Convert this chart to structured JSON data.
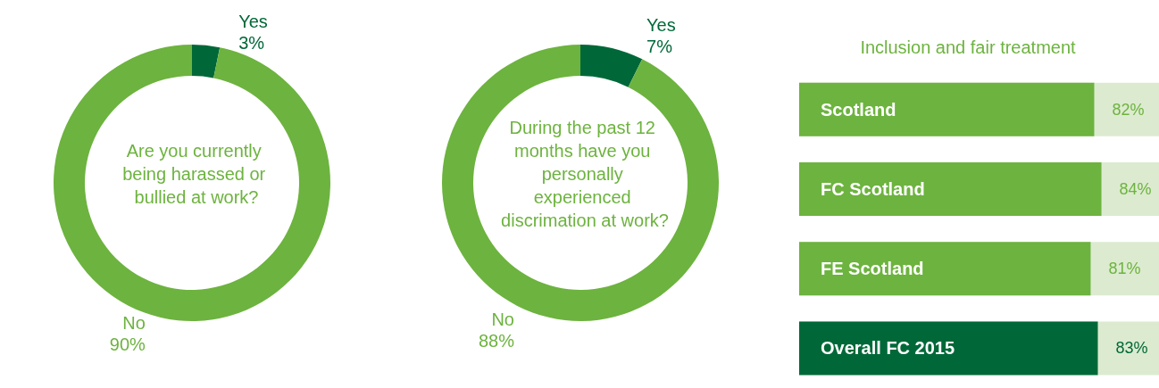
{
  "chart_data": [
    {
      "type": "donut",
      "title": "Are you currently being harassed or bullied at work?",
      "categories": [
        "Yes",
        "No"
      ],
      "values": [
        3,
        90
      ],
      "colors": [
        "#006838",
        "#6db33f"
      ],
      "value_labels": [
        "3%",
        "90%"
      ]
    },
    {
      "type": "donut",
      "title": "During the past 12 months have you personally experienced discrimation at work?",
      "categories": [
        "Yes",
        "No"
      ],
      "values": [
        7,
        88
      ],
      "colors": [
        "#006838",
        "#6db33f"
      ],
      "value_labels": [
        "7%",
        "88%"
      ]
    },
    {
      "type": "bar",
      "orientation": "horizontal",
      "title": "Inclusion and fair treatment",
      "categories": [
        "Scotland",
        "FC Scotland",
        "FE Scotland",
        "Overall FC 2015"
      ],
      "values": [
        82,
        84,
        81,
        83
      ],
      "colors": [
        "#6db33f",
        "#6db33f",
        "#6db33f",
        "#006838"
      ],
      "value_labels": [
        "82%",
        "84%",
        "81%",
        "83%"
      ],
      "xlim": [
        0,
        100
      ],
      "tick_labels": "y"
    }
  ]
}
